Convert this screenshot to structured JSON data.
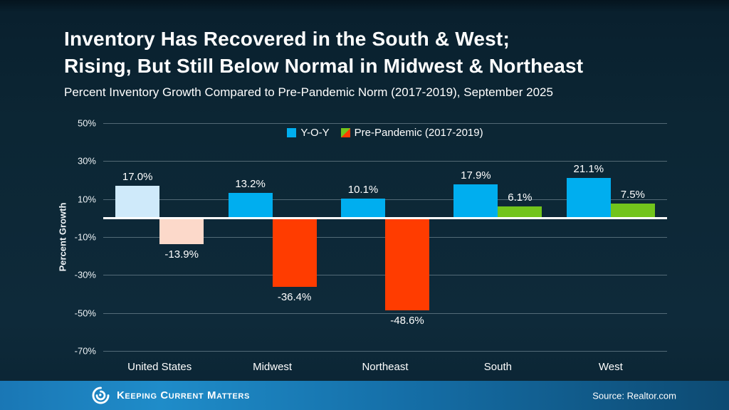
{
  "header": {
    "title_line1": "Inventory Has Recovered in the South & West;",
    "title_line2": "Rising, But Still Below Normal in Midwest & Northeast",
    "subtitle": "Percent Inventory Growth Compared to Pre-Pandemic Norm (2017-2019), September 2025"
  },
  "chart_data": {
    "type": "bar",
    "categories": [
      "United States",
      "Midwest",
      "Northeast",
      "South",
      "West"
    ],
    "series": [
      {
        "name": "Y-O-Y",
        "values": [
          17.0,
          13.2,
          10.1,
          17.9,
          21.1
        ]
      },
      {
        "name": "Pre-Pandemic (2017-2019)",
        "values": [
          -13.9,
          -36.4,
          -48.6,
          6.1,
          7.5
        ]
      }
    ],
    "value_label_format": "percent_one_decimal",
    "title": "Inventory Has Recovered in the South & West; Rising, But Still Below Normal in Midwest & Northeast",
    "xlabel": "",
    "ylabel": "Percent Growth",
    "ylim": [
      -70,
      50
    ],
    "yticks": [
      50,
      30,
      10,
      -10,
      -30,
      -50,
      -70
    ],
    "ytick_labels": [
      "50%",
      "30%",
      "10%",
      "-10%",
      "-30%",
      "-50%",
      "-70%"
    ],
    "grid": true,
    "legend_position": "top-center",
    "muted_categories": [
      "United States"
    ],
    "colors": {
      "yoy": "#00aeef",
      "yoy_muted": "#cfeafa",
      "pre_positive": "#72c41c",
      "pre_negative": "#ff3c00",
      "pre_negative_muted": "#fcd9ca",
      "pre_positive_muted": "#d9f0bf"
    }
  },
  "footer": {
    "brand": "Keeping Current Matters",
    "source": "Source: Realtor.com"
  }
}
